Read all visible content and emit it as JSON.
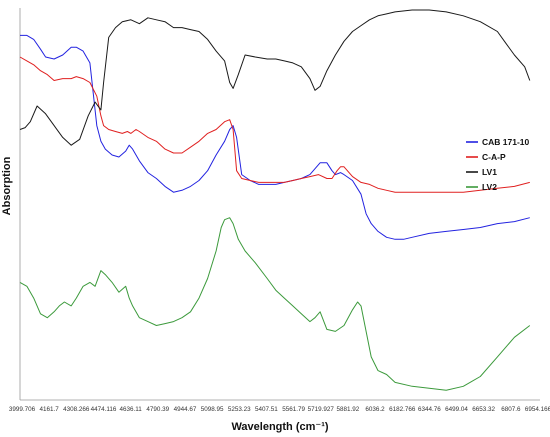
{
  "chart_data": {
    "type": "line",
    "title": "",
    "xlabel": "Wavelength (cm⁻¹)",
    "ylabel": "Absorption",
    "xlim": [
      3999.706,
      7050
    ],
    "y_units": "arbitrary (offset traces)",
    "grid": false,
    "legend_position": "right-center",
    "x_tick_labels": [
      "3999.706",
      "4161.7",
      "4308.266",
      "4474.116",
      "4636.11",
      "4790.39",
      "4944.67",
      "5098.95",
      "5253.23",
      "5407.51",
      "5561.79",
      "5719.927",
      "5881.92",
      "6036.2",
      "6182.766",
      "6344.76",
      "6499.04",
      "6653.32",
      "6807.6",
      "6954.166"
    ],
    "series": [
      {
        "name": "CAB 171-10",
        "color": "#2323e0",
        "x": [
          3999.7,
          4040,
          4080,
          4120,
          4150,
          4200,
          4250,
          4300,
          4330,
          4370,
          4410,
          4450,
          4474,
          4500,
          4540,
          4580,
          4620,
          4640,
          4660,
          4700,
          4750,
          4800,
          4850,
          4900,
          4950,
          5000,
          5050,
          5100,
          5150,
          5200,
          5230,
          5250,
          5270,
          5300,
          5350,
          5400,
          5450,
          5500,
          5550,
          5600,
          5650,
          5700,
          5730,
          5760,
          5800,
          5830,
          5850,
          5880,
          5900,
          5950,
          6000,
          6030,
          6060,
          6100,
          6150,
          6200,
          6250,
          6300,
          6400,
          6500,
          6600,
          6700,
          6800,
          6900,
          6990
        ],
        "y": [
          86,
          86,
          84,
          79,
          75,
          74,
          76,
          80,
          80,
          78,
          72,
          40,
          32,
          28,
          25,
          24,
          27,
          30,
          28,
          22,
          16,
          13,
          9,
          6,
          7,
          9,
          12,
          17,
          25,
          32,
          38,
          40,
          34,
          15,
          12,
          10,
          10,
          10,
          11,
          12,
          13,
          15,
          18,
          21,
          21,
          17,
          15,
          16,
          15,
          12,
          5,
          -5,
          -10,
          -14,
          -17,
          -18,
          -18,
          -17,
          -15,
          -14,
          -13,
          -12,
          -10,
          -9,
          -7
        ]
      },
      {
        "name": "C-A-P",
        "color": "#e02020",
        "x": [
          3999.7,
          4040,
          4080,
          4120,
          4160,
          4200,
          4250,
          4300,
          4330,
          4370,
          4410,
          4450,
          4474,
          4490,
          4520,
          4560,
          4600,
          4630,
          4650,
          4680,
          4700,
          4750,
          4800,
          4850,
          4900,
          4950,
          5000,
          5050,
          5100,
          5150,
          5200,
          5230,
          5250,
          5270,
          5300,
          5350,
          5400,
          5450,
          5500,
          5550,
          5600,
          5650,
          5700,
          5750,
          5800,
          5830,
          5860,
          5880,
          5900,
          5950,
          6000,
          6050,
          6100,
          6150,
          6200,
          6300,
          6400,
          6500,
          6600,
          6700,
          6800,
          6900,
          6990
        ],
        "y": [
          75,
          73,
          71,
          68,
          66,
          63,
          64,
          64,
          65,
          64,
          62,
          55,
          45,
          40,
          38,
          37,
          36,
          37,
          36,
          38,
          37,
          34,
          32,
          28,
          26,
          26,
          29,
          32,
          36,
          38,
          42,
          43,
          38,
          17,
          13,
          12,
          11,
          11,
          11,
          11,
          12,
          13,
          14,
          15,
          13,
          13,
          17,
          19,
          19,
          14,
          11,
          10,
          8,
          7,
          6,
          6,
          6,
          6,
          6,
          7,
          8,
          9,
          11
        ]
      },
      {
        "name": "LV1",
        "color": "#1a1a1a",
        "x": [
          3999.7,
          4030,
          4060,
          4100,
          4150,
          4200,
          4250,
          4300,
          4350,
          4400,
          4440,
          4474,
          4490,
          4520,
          4560,
          4600,
          4650,
          4700,
          4750,
          4800,
          4850,
          4900,
          4950,
          5000,
          5050,
          5100,
          5150,
          5200,
          5230,
          5250,
          5280,
          5320,
          5380,
          5450,
          5500,
          5550,
          5600,
          5650,
          5700,
          5730,
          5760,
          5800,
          5850,
          5900,
          5950,
          6000,
          6050,
          6100,
          6150,
          6200,
          6300,
          6400,
          6500,
          6600,
          6700,
          6800,
          6850,
          6900,
          6960,
          6990
        ],
        "y": [
          38,
          39,
          42,
          50,
          46,
          40,
          34,
          30,
          33,
          45,
          52,
          48,
          62,
          85,
          90,
          93,
          94,
          92,
          95,
          94,
          93,
          90,
          90,
          89,
          88,
          84,
          78,
          73,
          62,
          59,
          66,
          76,
          75,
          74,
          74,
          73,
          72,
          70,
          64,
          58,
          60,
          68,
          76,
          83,
          88,
          91,
          94,
          96,
          97,
          98,
          99,
          99,
          98,
          96,
          93,
          88,
          82,
          76,
          70,
          63
        ]
      },
      {
        "name": "LV2",
        "color": "#3c9a3c",
        "x": [
          3999.7,
          4040,
          4080,
          4120,
          4160,
          4200,
          4230,
          4260,
          4300,
          4330,
          4370,
          4410,
          4440,
          4474,
          4500,
          4540,
          4580,
          4620,
          4640,
          4660,
          4700,
          4750,
          4800,
          4850,
          4900,
          4950,
          5000,
          5050,
          5100,
          5150,
          5180,
          5200,
          5230,
          5250,
          5280,
          5320,
          5380,
          5450,
          5500,
          5550,
          5600,
          5650,
          5700,
          5730,
          5760,
          5800,
          5850,
          5900,
          5950,
          5980,
          6000,
          6030,
          6060,
          6100,
          6150,
          6200,
          6300,
          6400,
          6500,
          6600,
          6700,
          6800,
          6900,
          6990
        ],
        "y": [
          -40,
          -42,
          -48,
          -56,
          -58,
          -55,
          -52,
          -50,
          -52,
          -48,
          -42,
          -40,
          -42,
          -34,
          -36,
          -40,
          -45,
          -42,
          -48,
          -52,
          -58,
          -60,
          -62,
          -61,
          -60,
          -58,
          -55,
          -48,
          -38,
          -24,
          -12,
          -8,
          -7,
          -10,
          -18,
          -24,
          -30,
          -38,
          -44,
          -48,
          -52,
          -56,
          -60,
          -58,
          -55,
          -64,
          -65,
          -62,
          -54,
          -50,
          -52,
          -65,
          -78,
          -85,
          -87,
          -91,
          -93,
          -94,
          -95,
          -93,
          -88,
          -78,
          -68,
          -62
        ]
      }
    ]
  }
}
